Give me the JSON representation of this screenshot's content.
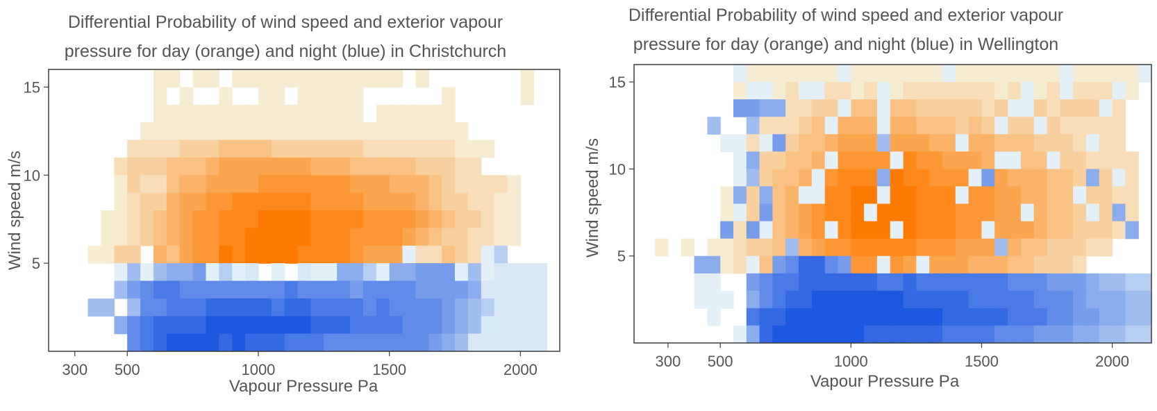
{
  "colors": {
    "day_low": "#f6ecd2",
    "day_high": "#ff7a00",
    "night_low": "#e3f0f8",
    "night_high": "#1e58e0",
    "axis": "#3c3c3c",
    "text": "#555555"
  },
  "chart_data": [
    {
      "type": "heatmap",
      "title_lines": [
        "Differential Probability of wind speed and exterior vapour",
        "pressure for day (orange) and night (blue) in Christchurch"
      ],
      "xlabel": "Vapour Pressure Pa",
      "ylabel": "Wind speed m/s",
      "xlim": [
        200,
        2150
      ],
      "ylim": [
        0,
        16
      ],
      "xticks": [
        {
          "value": 300,
          "label": "300"
        },
        {
          "value": 500,
          "label": "500"
        },
        {
          "value": 1000,
          "label": "1000"
        },
        {
          "value": 1500,
          "label": "1500"
        },
        {
          "value": 2000,
          "label": "2000"
        }
      ],
      "yticks": [
        {
          "value": 5,
          "label": "5"
        },
        {
          "value": 10,
          "label": "10"
        },
        {
          "value": 15,
          "label": "15"
        }
      ],
      "x_bins": {
        "start": 300,
        "width": 50,
        "count": 36
      },
      "y_bins": {
        "start": 0,
        "height": 1,
        "count": 16
      },
      "value_scale": "day positive (orange), night negative (blue), magnitude 0 to 1",
      "grid_rows_top_to_bottom": [
        "......11.11.1111111111111.1.......1.",
        "......1.1..1..11.11111......1.....1.",
        "......1111111111111111.111111.......",
        ".....1111111111111111111111111......",
        "....2222333444433333332222222111....",
        "...2333444566666665554444433322.....",
        "...1322455666677777776665554322221..",
        "...1233566778888887777666654332211..",
        "..11234567788899998888777765433211..",
        "..11234567788999998887777654332211..",
        ".1133.546779899998888766652243221...",
        "...-2---------...---------2---------",
        "...---------------------------------",
        ".--.---------------------------------",
        "...---------------------------------",
        "....---------------------------------"
      ],
      "night_grid_rows_top_to_bottom": [
        "....................................",
        "....................................",
        "....................................",
        "....................................",
        "....................................",
        "....................................",
        "....................................",
        "....................................",
        "....................................",
        "....................................",
        ".........................-.....-2...",
        "...-3-3445-2-..-..--442-44555-3-....",
        "...3567766666666766665666655554.....",
        ".33.3667778888878877776766665432....",
        "...4678888999999998887777666543.....",
        "....67899998988877766666666543......"
      ]
    },
    {
      "type": "heatmap",
      "title_lines": [
        "Differential Probability of wind speed and exterior vapour",
        "pressure for day (orange) and night (blue) in Wellington"
      ],
      "xlabel": "Vapour Pressure Pa",
      "ylabel": "Wind speed m/s",
      "xlim": [
        170,
        2150
      ],
      "ylim": [
        0,
        16
      ],
      "xticks": [
        {
          "value": 300,
          "label": "300"
        },
        {
          "value": 500,
          "label": "500"
        },
        {
          "value": 1000,
          "label": "1000"
        },
        {
          "value": 1500,
          "label": "1500"
        },
        {
          "value": 2000,
          "label": "2000"
        }
      ],
      "yticks": [
        {
          "value": 5,
          "label": "5"
        },
        {
          "value": 10,
          "label": "10"
        },
        {
          "value": 15,
          "label": "15"
        }
      ],
      "x_bins": {
        "start": 200,
        "width": 50,
        "count": 39
      },
      "y_bins": {
        "start": 0,
        "height": 1,
        "count": 16
      },
      "value_scale": "day positive (orange), night negative (blue), magnitude 0 to 1",
      "grid_rows_top_to_bottom": [
        ".......1111111111111111111111111111111.",
        ".......1121211221211222222212212222221.",
        "........22222334443443333323333233322..",
        ".........2223455554554443434333322222..",
        "........22334456666666555554443332222..",
        ".......2233445677778877666555444332222.",
        ".......2234456788899887776665554433322.",
        "......12334567889999988877766554433322.",
        "......12334567889999988877766654433332.",
        "......1234456788999998887776665443332..",
        ".1.1.1123344567788888777666554433322...",
        "......1234455667777766666555443332.....",
        "......................................",
        "......................................",
        "......................................",
        "......................................"
      ],
      "night_grid_rows_top_to_bottom": [
        ".......-.......-.......-........-.....-",
        "........--..--....-..........-..-...-..",
        ".......5544....-..-.........--.....-...",
        ".....3..3.....-...-........-..-........",
        "......--.-5.......3.....-.........-....",
        ".......-4.....-....-.......--..-.......",
        ".......-3....-....4......-5.......4.-..",
        ".......4.4..--....-.....-........-.....",
        ".......-.5.......-...........-....-.4..",
        "......5.5-....-....-......-..........4.",
        "...........3...............3...........",
        "....44..-.568865..-..-..................",
        "....--..5677888888778777777766655543322",
        "....---.4678899999998888877777666544433",
        ".....-..7889999999999998888877766554433",
        ".......-4899999998888887777666555443322"
      ]
    }
  ],
  "x_axis_labels": [
    "Vapour Pressure Pa",
    "Vapour Pressure Pa"
  ]
}
